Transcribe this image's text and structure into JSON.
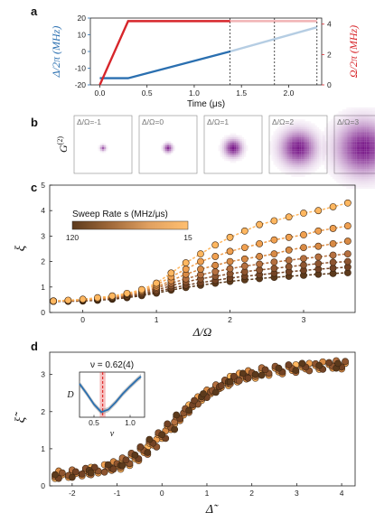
{
  "panels": {
    "a": "a",
    "b": "b",
    "c": "c",
    "d": "d"
  },
  "chart_data": [
    {
      "id": "a",
      "type": "line",
      "xlabel": "Time (μs)",
      "ylabel_left": "Δ/2π (MHz)",
      "ylabel_right": "Ω/2π (MHz)",
      "xlim": [
        -0.1,
        2.35
      ],
      "xticks": [
        "0.0",
        "0.5",
        "1.0",
        "1.5",
        "2.0"
      ],
      "ylim_left": [
        -20,
        20
      ],
      "yticks_left": [
        "-20",
        "-10",
        "0",
        "10",
        "20"
      ],
      "ylim_right": [
        0,
        4.4
      ],
      "yticks_right": [
        "0",
        "2",
        "4"
      ],
      "detuning_color": "#2a6fb0",
      "rabi_color": "#d7262b",
      "detuning_series": {
        "x": [
          0.0,
          0.3,
          1.38,
          2.3
        ],
        "y": [
          -16,
          -16,
          0,
          14.5
        ]
      },
      "rabi_series": {
        "x": [
          0.0,
          0.3,
          2.3
        ],
        "y": [
          0.0,
          4.2,
          4.2
        ]
      },
      "dashed_times": [
        1.38,
        1.85,
        2.3
      ]
    },
    {
      "id": "b",
      "type": "heatmap",
      "ylabel": "G(2)",
      "tiles": [
        {
          "label": "Δ/Ω=-1",
          "spread": 1,
          "intensity": 0.7
        },
        {
          "label": "Δ/Ω=0",
          "spread": 1.5,
          "intensity": 0.9
        },
        {
          "label": "Δ/Ω=1",
          "spread": 3,
          "intensity": 1
        },
        {
          "label": "Δ/Ω=2",
          "spread": 6,
          "intensity": 1
        },
        {
          "label": "Δ/Ω=3",
          "spread": 9,
          "intensity": 1
        }
      ]
    },
    {
      "id": "c",
      "type": "scatter",
      "xlabel": "Δ/Ω",
      "ylabel": "ξ",
      "xlim": [
        -0.45,
        3.7
      ],
      "ylim": [
        0,
        5
      ],
      "xticks": [
        "0",
        "1",
        "2",
        "3"
      ],
      "yticks": [
        "0",
        "1",
        "2",
        "3",
        "4",
        "5"
      ],
      "colorbar": {
        "title": "Sweep Rate s (MHz/μs)",
        "min_label": "120",
        "max_label": "15",
        "colors": [
          "#5c3a1c",
          "#a0693a",
          "#e0a060",
          "#ffbf70"
        ]
      },
      "x": [
        -0.4,
        -0.2,
        0.0,
        0.2,
        0.4,
        0.6,
        0.8,
        1.0,
        1.2,
        1.4,
        1.6,
        1.8,
        2.0,
        2.2,
        2.4,
        2.6,
        2.8,
        3.0,
        3.2,
        3.4,
        3.6
      ],
      "series": [
        {
          "rate": 15,
          "color": "#ffb760",
          "values": [
            0.45,
            0.48,
            0.52,
            0.58,
            0.65,
            0.75,
            0.9,
            1.15,
            1.55,
            1.95,
            2.3,
            2.65,
            2.95,
            3.2,
            3.45,
            3.6,
            3.75,
            3.9,
            4.0,
            4.15,
            4.3
          ]
        },
        {
          "rate": 25,
          "color": "#f0a050",
          "values": [
            0.45,
            0.47,
            0.5,
            0.55,
            0.62,
            0.72,
            0.85,
            1.08,
            1.4,
            1.7,
            2.0,
            2.2,
            2.4,
            2.55,
            2.7,
            2.85,
            2.95,
            3.05,
            3.2,
            3.3,
            3.4
          ]
        },
        {
          "rate": 40,
          "color": "#d88a45",
          "values": [
            0.45,
            0.46,
            0.49,
            0.53,
            0.6,
            0.7,
            0.82,
            1.0,
            1.25,
            1.5,
            1.7,
            1.85,
            2.0,
            2.1,
            2.2,
            2.3,
            2.45,
            2.55,
            2.6,
            2.7,
            2.8
          ]
        },
        {
          "rate": 60,
          "color": "#b57040",
          "values": [
            0.45,
            0.46,
            0.48,
            0.52,
            0.58,
            0.67,
            0.78,
            0.95,
            1.15,
            1.32,
            1.48,
            1.6,
            1.72,
            1.82,
            1.9,
            1.98,
            2.05,
            2.12,
            2.18,
            2.25,
            2.3
          ]
        },
        {
          "rate": 85,
          "color": "#8e5530",
          "values": [
            0.44,
            0.45,
            0.47,
            0.5,
            0.56,
            0.64,
            0.74,
            0.88,
            1.05,
            1.2,
            1.32,
            1.42,
            1.52,
            1.6,
            1.67,
            1.73,
            1.8,
            1.86,
            1.92,
            1.97,
            2.0
          ]
        },
        {
          "rate": 100,
          "color": "#734325",
          "values": [
            0.44,
            0.45,
            0.46,
            0.49,
            0.54,
            0.61,
            0.7,
            0.82,
            0.95,
            1.07,
            1.17,
            1.26,
            1.35,
            1.42,
            1.48,
            1.54,
            1.6,
            1.65,
            1.7,
            1.74,
            1.78
          ]
        },
        {
          "rate": 120,
          "color": "#5c3a1c",
          "values": [
            0.44,
            0.44,
            0.45,
            0.48,
            0.52,
            0.58,
            0.66,
            0.76,
            0.88,
            0.98,
            1.07,
            1.15,
            1.22,
            1.28,
            1.33,
            1.38,
            1.42,
            1.46,
            1.5,
            1.53,
            1.56
          ]
        }
      ]
    },
    {
      "id": "d",
      "type": "scatter",
      "xlabel": "Δ̃",
      "ylabel": "ξ̃",
      "xlim": [
        -2.5,
        4.3
      ],
      "ylim": [
        0,
        3.6
      ],
      "xticks": [
        "-2",
        "-1",
        "0",
        "1",
        "2",
        "3",
        "4"
      ],
      "yticks": [
        "0",
        "1",
        "2",
        "3"
      ],
      "inset": {
        "title": "ν = 0.62(4)",
        "xlabel": "ν",
        "ylabel": "D",
        "xlim": [
          0.3,
          1.2
        ],
        "xticks": [
          "0.5",
          "1.0"
        ],
        "nu": 0.62,
        "nu_err": 0.04,
        "curve": {
          "x": [
            0.3,
            0.4,
            0.5,
            0.6,
            0.7,
            0.8,
            0.9,
            1.0,
            1.1,
            1.15
          ],
          "y": [
            0.78,
            0.55,
            0.3,
            0.12,
            0.18,
            0.35,
            0.55,
            0.72,
            0.88,
            0.95
          ]
        },
        "line_color": "#2a6fb0",
        "band_color": "#a0a0a0",
        "marker_color": "#e03030"
      },
      "x": [
        -2.3,
        -2.0,
        -1.7,
        -1.5,
        -1.2,
        -1.0,
        -0.8,
        -0.6,
        -0.4,
        -0.2,
        0.0,
        0.2,
        0.4,
        0.6,
        0.8,
        1.0,
        1.2,
        1.4,
        1.6,
        1.8,
        2.0,
        2.3,
        2.6,
        2.9,
        3.2,
        3.5,
        3.8,
        4.0
      ],
      "values": [
        0.3,
        0.33,
        0.37,
        0.4,
        0.47,
        0.55,
        0.65,
        0.78,
        0.95,
        1.15,
        1.38,
        1.62,
        1.86,
        2.08,
        2.3,
        2.48,
        2.62,
        2.75,
        2.85,
        2.93,
        3.0,
        3.08,
        3.12,
        3.16,
        3.2,
        3.24,
        3.27,
        3.25
      ]
    }
  ]
}
